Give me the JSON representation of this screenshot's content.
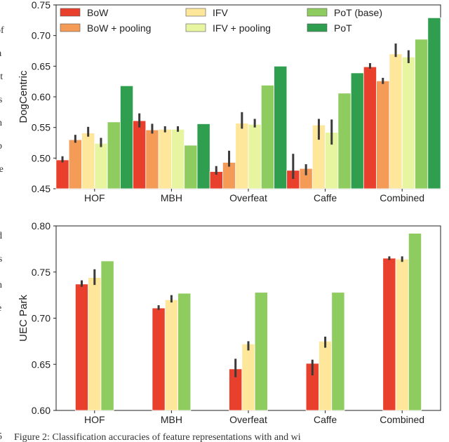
{
  "colors": {
    "BoW": "#e8402c",
    "BoW + pooling": "#f59b58",
    "IFV": "#fee79b",
    "IFV + pooling": "#e8f5a0",
    "PoT (base)": "#8fcc60",
    "PoT": "#2f9e4f"
  },
  "caption": "Figure 2: Classification accuracies of feature representations with and wi",
  "side_marks": [
    "5",
    "of",
    "a",
    "at",
    "ls",
    "n",
    "b",
    "re",
    "d",
    "is",
    "n",
    "e"
  ],
  "chart_data": [
    {
      "type": "bar",
      "ylabel": "DogCentric",
      "xlabel": "",
      "ylim": [
        0.45,
        0.75
      ],
      "yticks": [
        "0.45",
        "0.50",
        "0.55",
        "0.60",
        "0.65",
        "0.70",
        "0.75"
      ],
      "categories": [
        "HOF",
        "MBH",
        "Overfeat",
        "Caffe",
        "Combined"
      ],
      "legend": [
        "BoW",
        "BoW + pooling",
        "IFV",
        "IFV + pooling",
        "PoT (base)",
        "PoT"
      ],
      "legend_position": "top",
      "series": [
        {
          "name": "BoW",
          "values": [
            0.497,
            0.561,
            0.478,
            0.48,
            0.649
          ],
          "err_low": [
            0.493,
            0.55,
            0.473,
            0.466,
            0.646
          ],
          "err_high": [
            0.503,
            0.573,
            0.487,
            0.507,
            0.655
          ]
        },
        {
          "name": "BoW + pooling",
          "values": [
            0.53,
            0.546,
            0.493,
            0.483,
            0.626
          ],
          "err_low": [
            0.525,
            0.54,
            0.486,
            0.472,
            0.621
          ],
          "err_high": [
            0.538,
            0.556,
            0.512,
            0.49,
            0.631
          ]
        },
        {
          "name": "IFV",
          "values": [
            0.541,
            0.547,
            0.557,
            0.554,
            0.67
          ],
          "err_low": [
            0.535,
            0.542,
            0.548,
            0.53,
            0.665
          ],
          "err_high": [
            0.551,
            0.552,
            0.575,
            0.564,
            0.687
          ]
        },
        {
          "name": "IFV + pooling",
          "values": [
            0.524,
            0.547,
            0.555,
            0.542,
            0.665
          ],
          "err_low": [
            0.518,
            0.543,
            0.55,
            0.522,
            0.655
          ],
          "err_high": [
            0.533,
            0.552,
            0.564,
            0.563,
            0.676
          ]
        },
        {
          "name": "PoT (base)",
          "values": [
            0.559,
            0.521,
            0.619,
            0.606,
            0.694
          ]
        },
        {
          "name": "PoT",
          "values": [
            0.618,
            0.556,
            0.65,
            0.639,
            0.729
          ]
        }
      ]
    },
    {
      "type": "bar",
      "ylabel": "UEC Park",
      "xlabel": "",
      "ylim": [
        0.6,
        0.8
      ],
      "yticks": [
        "0.60",
        "0.65",
        "0.70",
        "0.75",
        "0.80"
      ],
      "categories": [
        "HOF",
        "MBH",
        "Overfeat",
        "Caffe",
        "Combined"
      ],
      "series": [
        {
          "name": "BoW",
          "values": [
            0.737,
            0.711,
            0.645,
            0.651,
            0.765
          ],
          "err_low": [
            0.734,
            0.709,
            0.636,
            0.638,
            0.763
          ],
          "err_high": [
            0.741,
            0.714,
            0.656,
            0.655,
            0.767
          ]
        },
        {
          "name": "IFV",
          "values": [
            0.744,
            0.72,
            0.672,
            0.675,
            0.764
          ],
          "err_low": [
            0.736,
            0.717,
            0.665,
            0.668,
            0.761
          ],
          "err_high": [
            0.753,
            0.725,
            0.675,
            0.68,
            0.767
          ]
        },
        {
          "name": "PoT (base)",
          "values": [
            0.762,
            0.727,
            0.728,
            0.728,
            0.792
          ]
        }
      ]
    }
  ]
}
